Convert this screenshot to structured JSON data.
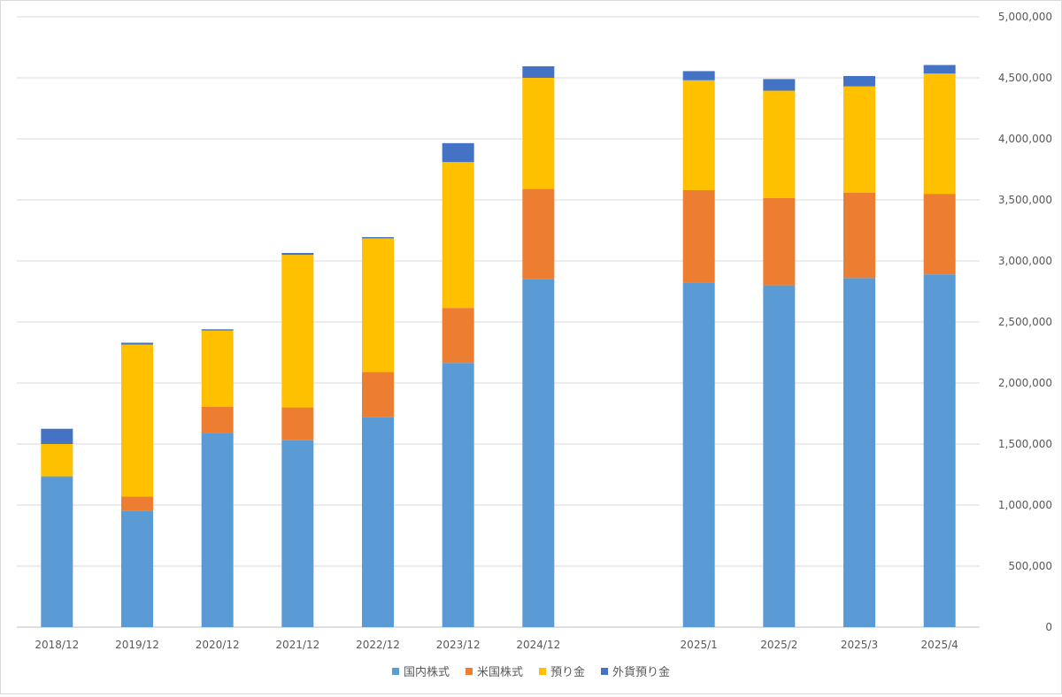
{
  "chart_data": {
    "type": "bar",
    "stacked": true,
    "categories": [
      "2018/12",
      "2019/12",
      "2020/12",
      "2021/12",
      "2022/12",
      "2023/12",
      "2024/12",
      "",
      "2025/1",
      "2025/2",
      "2025/3",
      "2025/4"
    ],
    "series": [
      {
        "name": "国内株式",
        "color": "#5B9BD5",
        "values": [
          1235000,
          950000,
          1590000,
          1530000,
          1720000,
          2165000,
          2850000,
          null,
          2825000,
          2800000,
          2860000,
          2890000
        ]
      },
      {
        "name": "米国株式",
        "color": "#ED7D31",
        "values": [
          0,
          120000,
          215000,
          270000,
          370000,
          450000,
          740000,
          null,
          755000,
          715000,
          700000,
          660000
        ]
      },
      {
        "name": "預り金",
        "color": "#FFC000",
        "values": [
          265000,
          1245000,
          625000,
          1250000,
          1095000,
          1195000,
          910000,
          null,
          900000,
          880000,
          870000,
          985000
        ]
      },
      {
        "name": "外貨預り金",
        "color": "#4472C4",
        "values": [
          125000,
          15000,
          10000,
          15000,
          10000,
          155000,
          95000,
          null,
          75000,
          95000,
          85000,
          70000
        ]
      }
    ],
    "ylim": [
      0,
      5000000
    ],
    "yticks": [
      "0",
      "500,000",
      "1,000,000",
      "1,500,000",
      "2,000,000",
      "2,500,000",
      "3,000,000",
      "3,500,000",
      "4,000,000",
      "4,500,000",
      "5,000,000"
    ],
    "y_axis_position": "right",
    "grid": true,
    "legend_position": "bottom"
  }
}
